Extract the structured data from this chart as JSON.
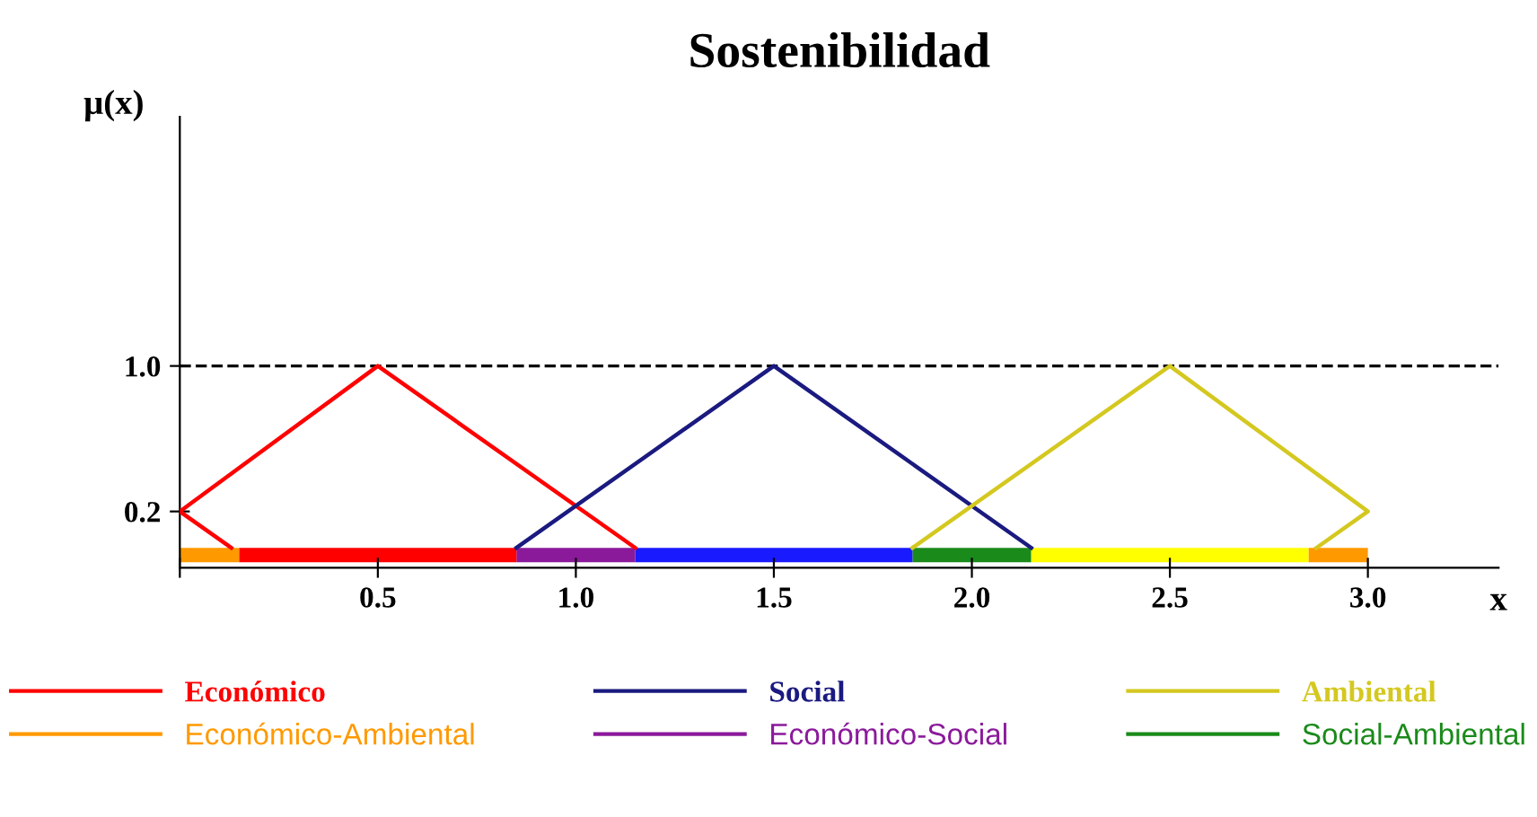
{
  "chart_data": {
    "type": "line",
    "title": "Sostenibilidad",
    "xlabel": "x",
    "ylabel": "μ(x)",
    "xlim": [
      0,
      3.33
    ],
    "ylim": [
      -0.11,
      2.37
    ],
    "xticks": [
      {
        "value": 0,
        "label": null
      },
      0.5,
      {
        "value": 1.0,
        "label": "1.0"
      },
      1.5,
      {
        "value": 2.0,
        "label": "2.0"
      },
      2.5,
      {
        "value": 3.0,
        "label": "3.0"
      }
    ],
    "yticks": [
      0.2,
      {
        "value": 1.0,
        "label": "1.0"
      }
    ],
    "series": [
      {
        "name": "Económico",
        "color": "#ff0000",
        "x": [
          0.13,
          0,
          0.5,
          1.15
        ],
        "values": [
          0,
          0.2,
          1,
          0
        ]
      },
      {
        "name": "Social",
        "color": "#1a1a80",
        "x": [
          0.85,
          1.5,
          2.15
        ],
        "values": [
          0,
          1,
          0
        ]
      },
      {
        "name": "Ambiental",
        "color": "#d4c820",
        "x": [
          1.85,
          2.5,
          3.0,
          2.87
        ],
        "values": [
          0,
          1,
          0.2,
          0
        ]
      },
      {
        "name": "Económico-Ambiental",
        "type": "area",
        "color": "#ff9900",
        "x": [
          0,
          0.15,
          1.5,
          2.85,
          3.0
        ],
        "values": [
          -0.08,
          -0.08,
          null,
          -0.08,
          -0.08
        ]
      },
      {
        "name": "Económico-Social",
        "type": "area",
        "color": "#8b1a9b",
        "x": [
          0.85,
          1.15
        ],
        "values": [
          -0.08,
          -0.08
        ]
      },
      {
        "name": "Social-Ambiental",
        "type": "area",
        "color": "#1a8a1a",
        "x": [
          1.85,
          2.15
        ],
        "values": [
          -0.08,
          -0.08
        ]
      },
      {
        "type": "area",
        "color": "#ff0000",
        "x": [
          0.15,
          0.85
        ],
        "values": [
          -0.08,
          -0.08
        ]
      },
      {
        "type": "area",
        "color": "#1a1aff",
        "x": [
          1.15,
          1.85
        ],
        "values": [
          -0.08,
          -0.08
        ]
      },
      {
        "type": "area",
        "color": "#ffff00",
        "x": [
          2.15,
          2.85
        ],
        "values": [
          -0.08,
          -0.08
        ]
      }
    ],
    "ref_lines": [
      {
        "axis": "y",
        "value": 1.0,
        "label": null,
        "line_style": "dashed"
      }
    ],
    "legend": "bottom",
    "grid": false,
    "marker": "none",
    "line_style": "solid"
  }
}
